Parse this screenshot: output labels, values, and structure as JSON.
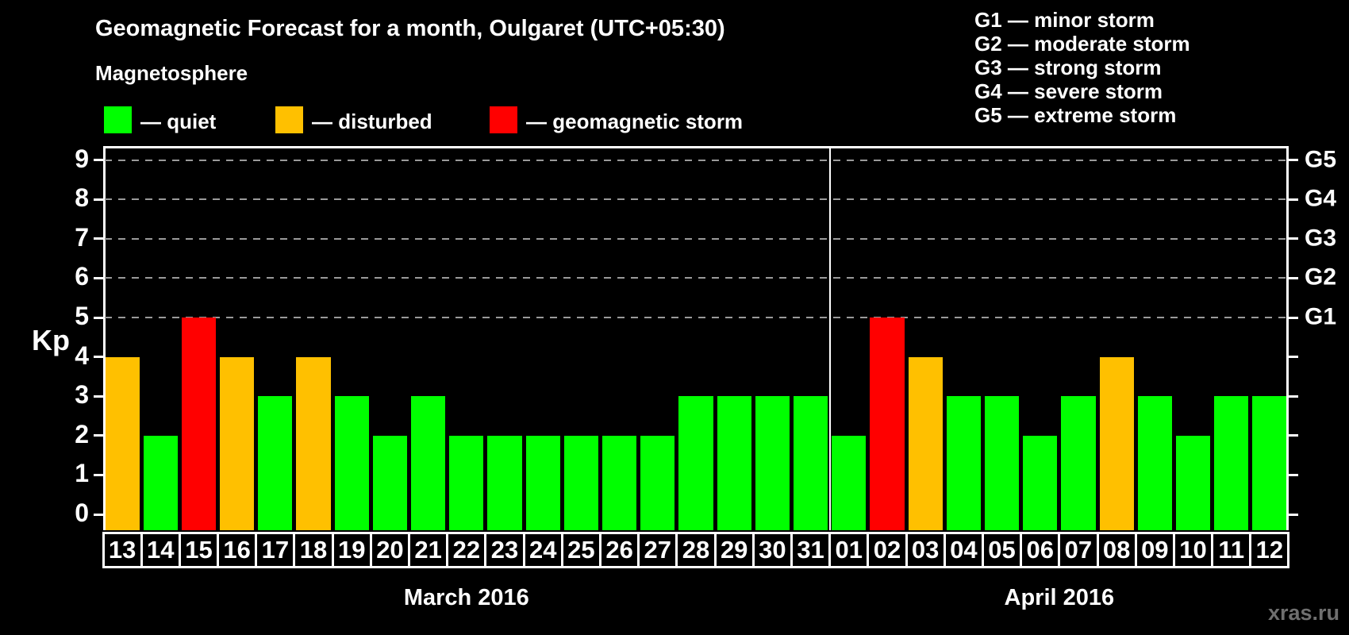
{
  "header": {
    "title": "Geomagnetic Forecast for a month, Oulgaret (UTC+05:30)",
    "subtitle": "Magnetosphere"
  },
  "legend": {
    "items": [
      {
        "name": "quiet",
        "color": "#00ff00",
        "label": "— quiet"
      },
      {
        "name": "disturbed",
        "color": "#ffc000",
        "label": "— disturbed"
      },
      {
        "name": "storm",
        "color": "#ff0000",
        "label": "— geomagnetic storm"
      }
    ]
  },
  "g_scale_legend": {
    "items": [
      "G1 — minor storm",
      "G2 — moderate storm",
      "G3 — strong storm",
      "G4 — severe storm",
      "G5 — extreme storm"
    ]
  },
  "watermark": "xras.ru",
  "chart_data": {
    "type": "bar",
    "ylabel": "Kp",
    "ylim": [
      0,
      9
    ],
    "yticks": [
      0,
      1,
      2,
      3,
      4,
      5,
      6,
      7,
      8,
      9
    ],
    "gridlines_at": [
      5,
      6,
      7,
      8,
      9
    ],
    "grid": "dashed horizontal, Kp 5-9 only",
    "legend_position": "top",
    "right_axis_labels": [
      {
        "kp": 5,
        "label": "G1"
      },
      {
        "kp": 6,
        "label": "G2"
      },
      {
        "kp": 7,
        "label": "G3"
      },
      {
        "kp": 8,
        "label": "G4"
      },
      {
        "kp": 9,
        "label": "G5"
      }
    ],
    "level_colors": {
      "quiet": "#00ff00",
      "disturbed": "#ffc000",
      "storm": "#ff0000"
    },
    "months": [
      {
        "label": "March 2016",
        "days": [
          {
            "day": "13",
            "kp": 4,
            "level": "disturbed"
          },
          {
            "day": "14",
            "kp": 2,
            "level": "quiet"
          },
          {
            "day": "15",
            "kp": 5,
            "level": "storm"
          },
          {
            "day": "16",
            "kp": 4,
            "level": "disturbed"
          },
          {
            "day": "17",
            "kp": 3,
            "level": "quiet"
          },
          {
            "day": "18",
            "kp": 4,
            "level": "disturbed"
          },
          {
            "day": "19",
            "kp": 3,
            "level": "quiet"
          },
          {
            "day": "20",
            "kp": 2,
            "level": "quiet"
          },
          {
            "day": "21",
            "kp": 3,
            "level": "quiet"
          },
          {
            "day": "22",
            "kp": 2,
            "level": "quiet"
          },
          {
            "day": "23",
            "kp": 2,
            "level": "quiet"
          },
          {
            "day": "24",
            "kp": 2,
            "level": "quiet"
          },
          {
            "day": "25",
            "kp": 2,
            "level": "quiet"
          },
          {
            "day": "26",
            "kp": 2,
            "level": "quiet"
          },
          {
            "day": "27",
            "kp": 2,
            "level": "quiet"
          },
          {
            "day": "28",
            "kp": 3,
            "level": "quiet"
          },
          {
            "day": "29",
            "kp": 3,
            "level": "quiet"
          },
          {
            "day": "30",
            "kp": 3,
            "level": "quiet"
          },
          {
            "day": "31",
            "kp": 3,
            "level": "quiet"
          }
        ]
      },
      {
        "label": "April 2016",
        "days": [
          {
            "day": "01",
            "kp": 2,
            "level": "quiet"
          },
          {
            "day": "02",
            "kp": 5,
            "level": "storm"
          },
          {
            "day": "03",
            "kp": 4,
            "level": "disturbed"
          },
          {
            "day": "04",
            "kp": 3,
            "level": "quiet"
          },
          {
            "day": "05",
            "kp": 3,
            "level": "quiet"
          },
          {
            "day": "06",
            "kp": 2,
            "level": "quiet"
          },
          {
            "day": "07",
            "kp": 3,
            "level": "quiet"
          },
          {
            "day": "08",
            "kp": 4,
            "level": "disturbed"
          },
          {
            "day": "09",
            "kp": 3,
            "level": "quiet"
          },
          {
            "day": "10",
            "kp": 2,
            "level": "quiet"
          },
          {
            "day": "11",
            "kp": 3,
            "level": "quiet"
          },
          {
            "day": "12",
            "kp": 3,
            "level": "quiet"
          }
        ]
      }
    ]
  }
}
